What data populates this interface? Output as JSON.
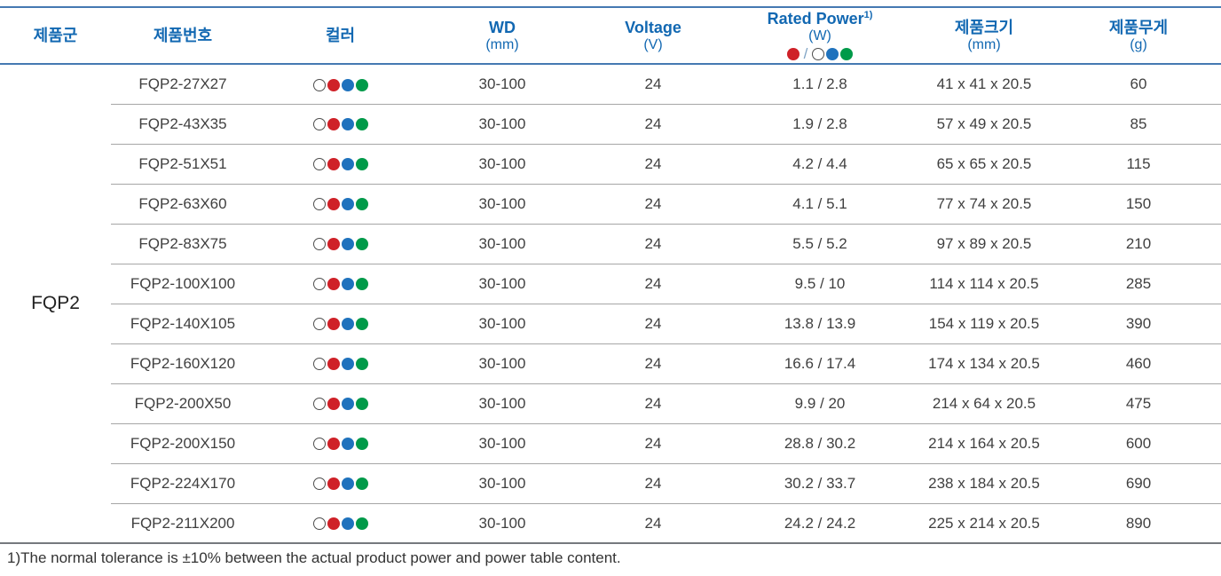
{
  "table": {
    "headers": {
      "family": "제품군",
      "part_no": "제품번호",
      "color": "컬러",
      "wd_line1": "WD",
      "wd_line2": "(mm)",
      "voltage_line1": "Voltage",
      "voltage_line2": "(V)",
      "rated_line1": "Rated Power",
      "rated_sup": "1)",
      "rated_line2": "(W)",
      "rated_slash": "/",
      "size_line1": "제품크기",
      "size_line2": "(mm)",
      "weight_line1": "제품무게",
      "weight_line2": "(g)"
    },
    "family_value": "FQP2",
    "color_legend_order": [
      "white",
      "red",
      "blue",
      "green"
    ],
    "rated_power_legend": {
      "left_dots": [
        "red"
      ],
      "right_dots": [
        "white",
        "blue",
        "green"
      ]
    },
    "rows": [
      {
        "part_no": "FQP2-27X27",
        "wd": "30-100",
        "voltage": "24",
        "rated_power": "1.1 / 2.8",
        "size": "41 x 41 x 20.5",
        "weight": "60"
      },
      {
        "part_no": "FQP2-43X35",
        "wd": "30-100",
        "voltage": "24",
        "rated_power": "1.9 / 2.8",
        "size": "57 x 49 x 20.5",
        "weight": "85"
      },
      {
        "part_no": "FQP2-51X51",
        "wd": "30-100",
        "voltage": "24",
        "rated_power": "4.2 / 4.4",
        "size": "65 x 65 x 20.5",
        "weight": "115"
      },
      {
        "part_no": "FQP2-63X60",
        "wd": "30-100",
        "voltage": "24",
        "rated_power": "4.1 / 5.1",
        "size": "77 x 74 x 20.5",
        "weight": "150"
      },
      {
        "part_no": "FQP2-83X75",
        "wd": "30-100",
        "voltage": "24",
        "rated_power": "5.5 / 5.2",
        "size": "97 x 89 x 20.5",
        "weight": "210"
      },
      {
        "part_no": "FQP2-100X100",
        "wd": "30-100",
        "voltage": "24",
        "rated_power": "9.5 / 10",
        "size": "114 x 114 x 20.5",
        "weight": "285"
      },
      {
        "part_no": "FQP2-140X105",
        "wd": "30-100",
        "voltage": "24",
        "rated_power": "13.8 / 13.9",
        "size": "154 x 119 x 20.5",
        "weight": "390"
      },
      {
        "part_no": "FQP2-160X120",
        "wd": "30-100",
        "voltage": "24",
        "rated_power": "16.6 / 17.4",
        "size": "174 x 134 x 20.5",
        "weight": "460"
      },
      {
        "part_no": "FQP2-200X50",
        "wd": "30-100",
        "voltage": "24",
        "rated_power": "9.9 / 20",
        "size": "214 x 64 x 20.5",
        "weight": "475"
      },
      {
        "part_no": "FQP2-200X150",
        "wd": "30-100",
        "voltage": "24",
        "rated_power": "28.8 / 30.2",
        "size": "214 x 164 x 20.5",
        "weight": "600"
      },
      {
        "part_no": "FQP2-224X170",
        "wd": "30-100",
        "voltage": "24",
        "rated_power": "30.2 / 33.7",
        "size": "238 x 184 x 20.5",
        "weight": "690"
      },
      {
        "part_no": "FQP2-211X200",
        "wd": "30-100",
        "voltage": "24",
        "rated_power": "24.2 / 24.2",
        "size": "225 x 214 x 20.5",
        "weight": "890"
      }
    ]
  },
  "footnote": "1)The normal tolerance is ±10% between the actual product power and power table content.",
  "colors": {
    "header_text": "#1268b2",
    "line_blue": "#4579b2",
    "divider_gray": "#a6a6a6",
    "bottom_line": "#75797e",
    "body_text": "#3f3f3f",
    "family_text": "#222222",
    "dot_red": "#cf2128",
    "dot_blue": "#1f72bd",
    "dot_green": "#009a49",
    "dot_white_border": "#4d4d4d",
    "slash_blue": "#7fa3c4",
    "footnote_text": "#333333"
  }
}
